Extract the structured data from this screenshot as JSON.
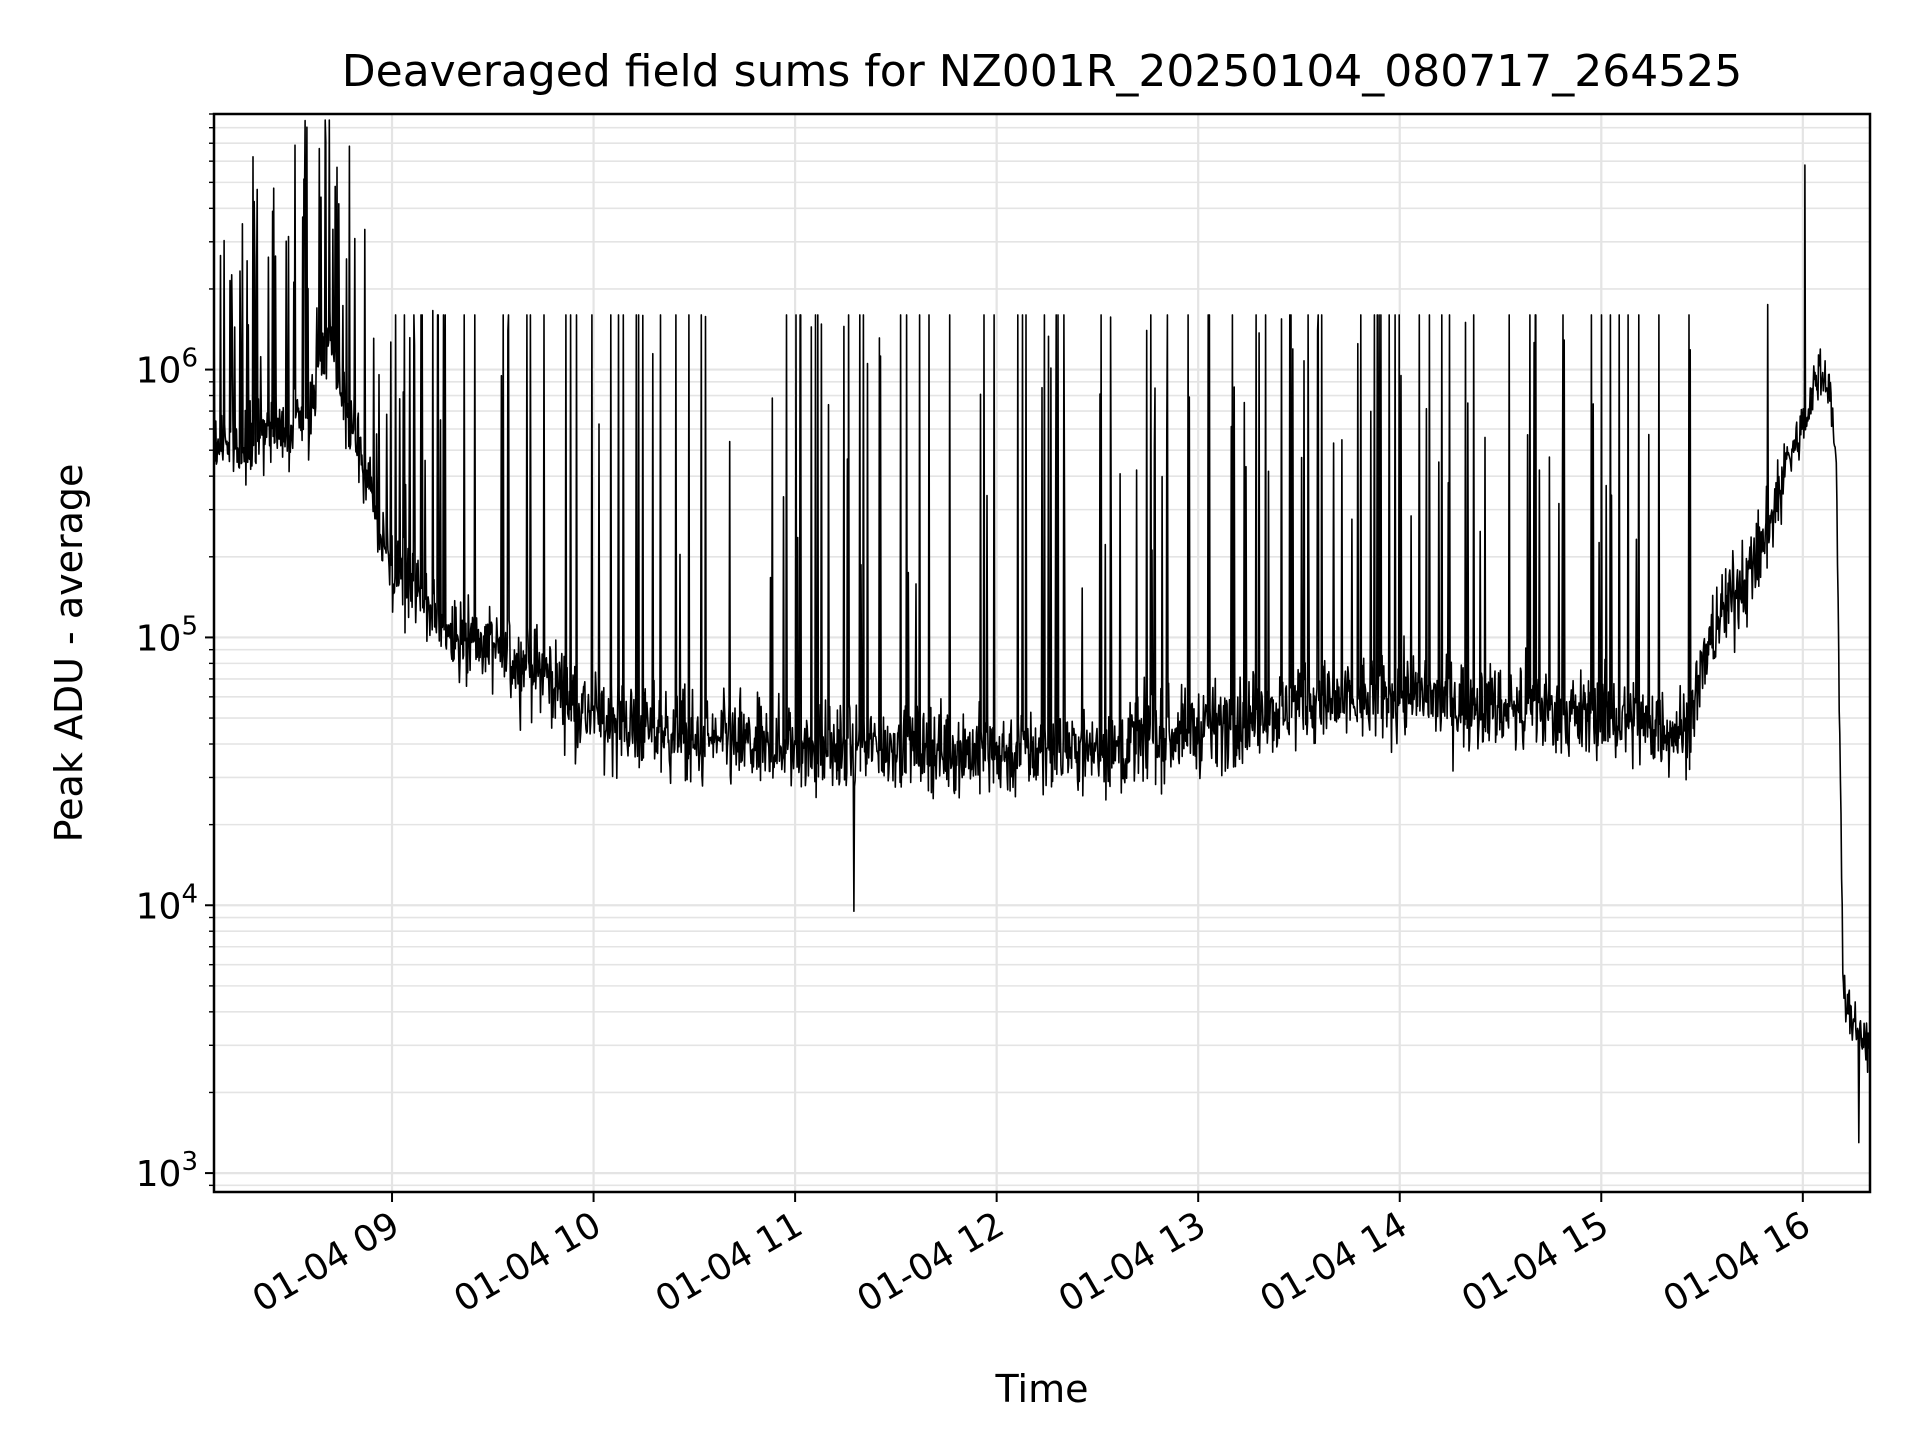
{
  "chart_data": {
    "type": "line",
    "title": "Deaveraged field sums for NZ001R_20250104_080717_264525",
    "xlabel": "Time",
    "ylabel": "Peak ADU - average",
    "xscale": "time",
    "yscale": "log",
    "grid": true,
    "xlim": [
      "01-04 08:07",
      "01-04 16:20"
    ],
    "ylim": [
      850,
      9000000
    ],
    "x_ticks": [
      "01-04 09",
      "01-04 10",
      "01-04 11",
      "01-04 12",
      "01-04 13",
      "01-04 14",
      "01-04 15",
      "01-04 16"
    ],
    "y_ticks": [
      {
        "base": "10",
        "exp": "3",
        "value": 1000
      },
      {
        "base": "10",
        "exp": "4",
        "value": 10000
      },
      {
        "base": "10",
        "exp": "5",
        "value": 100000
      },
      {
        "base": "10",
        "exp": "6",
        "value": 1000000
      }
    ],
    "series": [
      {
        "color": "#000000",
        "baseline_x": [
          "01-04 08:07",
          "01-04 08:15",
          "01-04 08:25",
          "01-04 08:35",
          "01-04 08:40",
          "01-04 08:45",
          "01-04 08:50",
          "01-04 08:55",
          "01-04 09:00",
          "01-04 09:15",
          "01-04 09:30",
          "01-04 09:45",
          "01-04 10:00",
          "01-04 10:30",
          "01-04 11:00",
          "01-04 11:30",
          "01-04 12:00",
          "01-04 12:30",
          "01-04 13:00",
          "01-04 13:30",
          "01-04 14:00",
          "01-04 14:30",
          "01-04 15:00",
          "01-04 15:25",
          "01-04 15:35",
          "01-04 15:45",
          "01-04 15:50",
          "01-04 15:55",
          "01-04 16:00",
          "01-04 16:05",
          "01-04 16:08",
          "01-04 16:10",
          "01-04 16:12",
          "01-04 16:15",
          "01-04 16:20"
        ],
        "baseline_y": [
          550000,
          500000,
          600000,
          620000,
          1300000,
          800000,
          500000,
          300000,
          180000,
          110000,
          90000,
          75000,
          50000,
          42000,
          38000,
          40000,
          37000,
          38000,
          45000,
          55000,
          60000,
          55000,
          50000,
          45000,
          120000,
          180000,
          250000,
          450000,
          600000,
          1000000,
          900000,
          400000,
          5000,
          3500,
          3000
        ],
        "spikes": [
          {
            "x": "01-04 08:38",
            "y": 1700000
          },
          {
            "x": "01-04 09:35",
            "y": 1400000
          },
          {
            "x": "01-04 11:15",
            "y": 1450000
          },
          {
            "x": "01-04 12:45",
            "y": 1400000
          },
          {
            "x": "01-04 14:20",
            "y": 1500000
          },
          {
            "x": "01-04 15:50",
            "y": 1750000
          },
          {
            "x": "01-04 16:01",
            "y": 5800000
          }
        ],
        "dips": [
          {
            "x": "01-04 11:18",
            "y": 9500
          },
          {
            "x": "01-04 16:17",
            "y": 1300
          }
        ]
      }
    ]
  }
}
